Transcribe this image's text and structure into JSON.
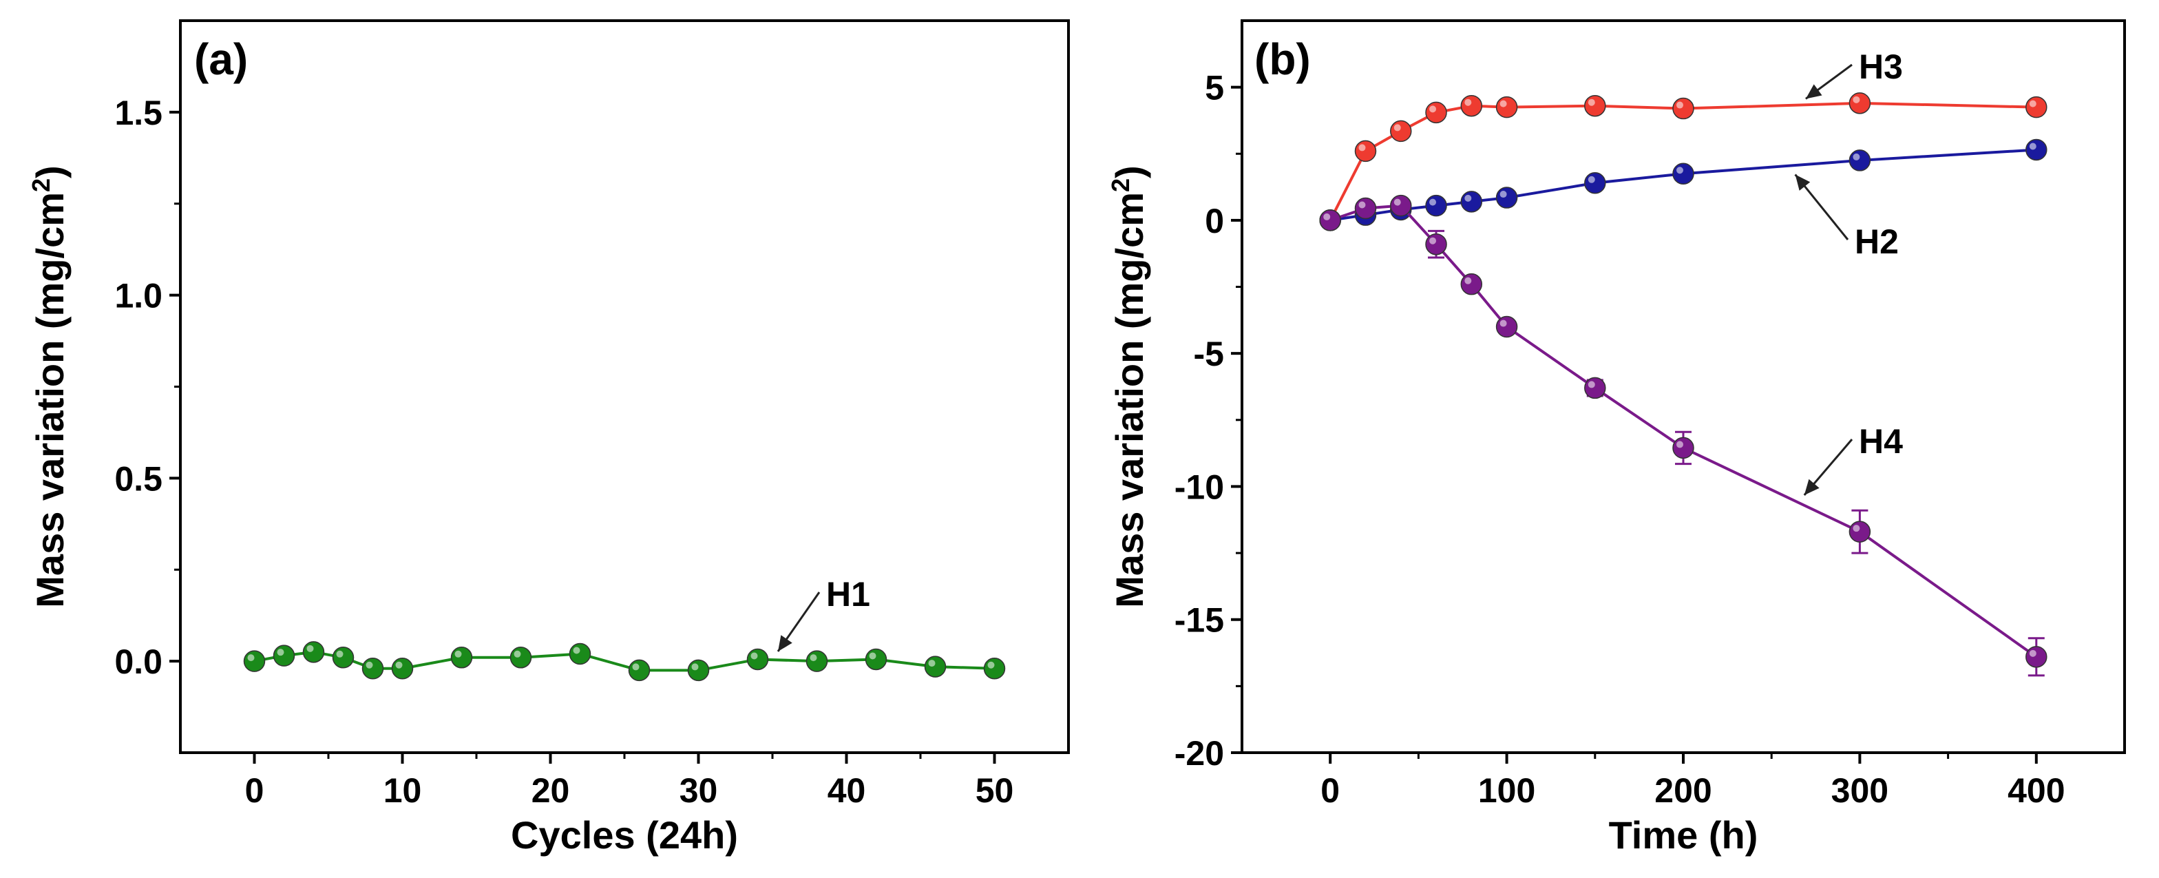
{
  "figure_title": "",
  "chart_data": [
    {
      "panel": "(a)",
      "type": "line",
      "title": "",
      "xlabel": "Cycles (24h)",
      "ylabel_main": "Mass variation (mg/cm",
      "ylabel_sup": "2",
      "ylabel_tail": ")",
      "xlim": [
        -5,
        55
      ],
      "ylim": [
        -0.25,
        1.75
      ],
      "xticks": [
        0,
        10,
        20,
        30,
        40,
        50
      ],
      "xtick_labels": [
        "0",
        "10",
        "20",
        "30",
        "40",
        "50"
      ],
      "yticks": [
        0.0,
        0.5,
        1.0,
        1.5
      ],
      "ytick_labels": [
        "0.0",
        "0.5",
        "1.0",
        "1.5"
      ],
      "grid": false,
      "series": [
        {
          "name": "H1",
          "color": "#1a8a1a",
          "x": [
            0,
            2,
            4,
            6,
            8,
            10,
            14,
            18,
            22,
            26,
            30,
            34,
            38,
            42,
            46,
            50
          ],
          "values": [
            0.0,
            0.015,
            0.025,
            0.01,
            -0.02,
            -0.02,
            0.01,
            0.01,
            0.02,
            -0.025,
            -0.025,
            0.005,
            0.0,
            0.005,
            -0.015,
            -0.02
          ]
        }
      ],
      "annotations": [
        {
          "text": "H1",
          "target_x": 35,
          "target_y": 0.005
        }
      ]
    },
    {
      "panel": "(b)",
      "type": "line",
      "title": "",
      "xlabel": "Time (h)",
      "ylabel_main": "Mass variation (mg/cm",
      "ylabel_sup": "2",
      "ylabel_tail": ")",
      "xlim": [
        -50,
        450
      ],
      "ylim": [
        -20,
        7.5
      ],
      "xticks": [
        0,
        100,
        200,
        300,
        400
      ],
      "xtick_labels": [
        "0",
        "100",
        "200",
        "300",
        "400"
      ],
      "yticks": [
        -20,
        -15,
        -10,
        -5,
        0,
        5
      ],
      "ytick_labels": [
        "-20",
        "-15",
        "-10",
        "-5",
        "0",
        "5"
      ],
      "grid": false,
      "series": [
        {
          "name": "H3",
          "color": "#ee3b30",
          "x": [
            0,
            20,
            40,
            60,
            80,
            100,
            150,
            200,
            300,
            400
          ],
          "values": [
            0.0,
            2.6,
            3.35,
            4.05,
            4.3,
            4.25,
            4.3,
            4.2,
            4.4,
            4.25
          ],
          "errors": [
            0,
            0,
            0,
            0,
            0.1,
            0,
            0,
            0,
            0.15,
            0
          ]
        },
        {
          "name": "H2",
          "color": "#1a1a9e",
          "x": [
            0,
            20,
            40,
            60,
            80,
            100,
            150,
            200,
            300,
            400
          ],
          "values": [
            0.0,
            0.2,
            0.4,
            0.55,
            0.7,
            0.85,
            1.4,
            1.75,
            2.25,
            2.65
          ],
          "errors": [
            0,
            0,
            0,
            0,
            0,
            0,
            0,
            0,
            0,
            0
          ]
        },
        {
          "name": "H4",
          "color": "#7a1a8a",
          "x": [
            0,
            20,
            40,
            60,
            80,
            100,
            150,
            200,
            300,
            400
          ],
          "values": [
            0.0,
            0.45,
            0.55,
            -0.9,
            -2.4,
            -4.0,
            -6.3,
            -8.55,
            -11.7,
            -16.4
          ],
          "errors": [
            0,
            0,
            0,
            0.5,
            0,
            0,
            0.3,
            0.6,
            0.8,
            0.7
          ]
        }
      ],
      "annotations": [
        {
          "text": "H3",
          "target_x": 265,
          "target_y": 4.35
        },
        {
          "text": "H2",
          "target_x": 260,
          "target_y": 2.0
        },
        {
          "text": "H4",
          "target_x": 265,
          "target_y": -10.6
        }
      ]
    }
  ]
}
